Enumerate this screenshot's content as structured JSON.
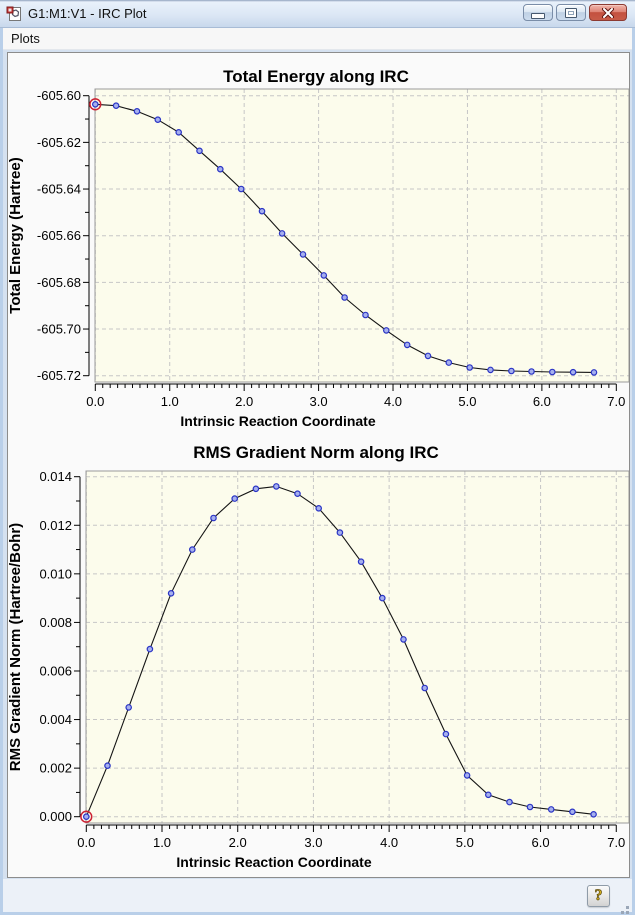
{
  "window": {
    "title": "G1:M1:V1 - IRC Plot",
    "controls": {
      "minimize_label": "minimize",
      "maximize_label": "maximize",
      "close_label": "close"
    }
  },
  "menu": {
    "items": [
      {
        "label": "Plots"
      }
    ]
  },
  "status": {
    "help_label": "?"
  },
  "colors": {
    "plot_bg": "#FCFCEC",
    "grid": "#C6C6C6",
    "line": "#141414",
    "marker_fill": "#A6B0EE",
    "marker_stroke": "#2B35C5",
    "selected_ring": "#CC2233",
    "plot_border": "#9A9A9A",
    "axis": "#000000",
    "text": "#000000",
    "close_button_red": "#C4503F"
  },
  "chart_data": [
    {
      "type": "line",
      "name": "total-energy",
      "title": "Total Energy along IRC",
      "xlabel": "Intrinsic Reaction Coordinate",
      "ylabel": "Total Energy (Hartree)",
      "xlim": [
        0,
        7
      ],
      "ylim": [
        -605.72,
        -605.6
      ],
      "grid": true,
      "legend_position": "none",
      "xticks": {
        "values": [
          0,
          1,
          2,
          3,
          4,
          5,
          6,
          7
        ],
        "labels": [
          "0.0",
          "1.0",
          "2.0",
          "3.0",
          "4.0",
          "5.0",
          "6.0",
          "7.0"
        ],
        "minor_step": 0.1
      },
      "yticks": {
        "values": [
          -605.6,
          -605.62,
          -605.64,
          -605.66,
          -605.68,
          -605.7,
          -605.72
        ],
        "labels": [
          "-605.60",
          "-605.62",
          "-605.64",
          "-605.66",
          "-605.68",
          "-605.70",
          "-605.72"
        ]
      },
      "x": [
        0.0,
        0.28,
        0.56,
        0.84,
        1.12,
        1.4,
        1.68,
        1.96,
        2.24,
        2.51,
        2.79,
        3.07,
        3.35,
        3.63,
        3.91,
        4.19,
        4.47,
        4.75,
        5.03,
        5.31,
        5.59,
        5.86,
        6.14,
        6.42,
        6.7
      ],
      "y": [
        -605.6037,
        -605.6043,
        -605.6067,
        -605.6103,
        -605.6157,
        -605.6236,
        -605.6315,
        -605.64,
        -605.6495,
        -605.659,
        -605.668,
        -605.677,
        -605.6865,
        -605.694,
        -605.7006,
        -605.7068,
        -605.7115,
        -605.7144,
        -605.7165,
        -605.7175,
        -605.718,
        -605.7182,
        -605.7184,
        -605.7185,
        -605.7186
      ],
      "selected_index": 0
    },
    {
      "type": "line",
      "name": "rms-gradient",
      "title": "RMS Gradient Norm along IRC",
      "xlabel": "Intrinsic Reaction Coordinate",
      "ylabel": "RMS Gradient Norm (Hartree/Bohr)",
      "xlim": [
        0,
        7
      ],
      "ylim": [
        0.0,
        0.014
      ],
      "grid": true,
      "legend_position": "none",
      "xticks": {
        "values": [
          0,
          1,
          2,
          3,
          4,
          5,
          6,
          7
        ],
        "labels": [
          "0.0",
          "1.0",
          "2.0",
          "3.0",
          "4.0",
          "5.0",
          "6.0",
          "7.0"
        ],
        "minor_step": 0.1
      },
      "yticks": {
        "values": [
          0.014,
          0.012,
          0.01,
          0.008,
          0.006,
          0.004,
          0.002,
          0.0
        ],
        "labels": [
          "0.014",
          "0.012",
          "0.010",
          "0.008",
          "0.006",
          "0.004",
          "0.002",
          "0.000"
        ]
      },
      "x": [
        0.0,
        0.28,
        0.56,
        0.84,
        1.12,
        1.4,
        1.68,
        1.96,
        2.24,
        2.51,
        2.79,
        3.07,
        3.35,
        3.63,
        3.91,
        4.19,
        4.47,
        4.75,
        5.03,
        5.31,
        5.59,
        5.86,
        6.14,
        6.42,
        6.7
      ],
      "y": [
        0.0,
        0.0021,
        0.0045,
        0.0069,
        0.0092,
        0.011,
        0.0123,
        0.0131,
        0.0135,
        0.0136,
        0.0133,
        0.0127,
        0.0117,
        0.0105,
        0.009,
        0.0073,
        0.0053,
        0.0034,
        0.0017,
        0.0009,
        0.0006,
        0.0004,
        0.0003,
        0.0002,
        0.0001
      ],
      "selected_index": 0
    }
  ]
}
